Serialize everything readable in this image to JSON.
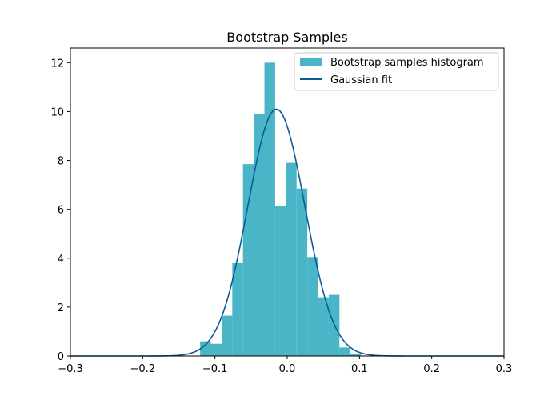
{
  "chart_data": {
    "type": "bar",
    "title": "Bootstrap Samples",
    "xlabel": "",
    "ylabel": "",
    "xlim": [
      -0.3,
      0.3
    ],
    "ylim": [
      0,
      12.6
    ],
    "xticks": [
      -0.3,
      -0.2,
      -0.1,
      0.0,
      0.1,
      0.2,
      0.3
    ],
    "xtick_labels": [
      "−0.3",
      "−0.2",
      "−0.1",
      "0.0",
      "0.1",
      "0.2",
      "0.3"
    ],
    "yticks": [
      0,
      2,
      4,
      6,
      8,
      10,
      12
    ],
    "ytick_labels": [
      "0",
      "2",
      "4",
      "6",
      "8",
      "10",
      "12"
    ],
    "grid": false,
    "legend_position": "top-right",
    "histogram": {
      "name": "Bootstrap samples histogram",
      "color": "#4ab5c6",
      "bin_edges": [
        -0.1205,
        -0.1057,
        -0.0908,
        -0.076,
        -0.0612,
        -0.0463,
        -0.0315,
        -0.0167,
        -0.0018,
        0.013,
        0.0278,
        0.0427,
        0.0575,
        0.0723,
        0.0872,
        0.102
      ],
      "values": [
        0.6,
        0.5,
        1.65,
        3.8,
        7.85,
        9.9,
        12.0,
        6.15,
        7.9,
        6.85,
        4.05,
        2.4,
        2.5,
        0.35,
        0.1
      ]
    },
    "fit": {
      "name": "Gaussian fit",
      "color": "#0f5a94",
      "type": "line",
      "mean": -0.015,
      "std": 0.0395
    }
  }
}
